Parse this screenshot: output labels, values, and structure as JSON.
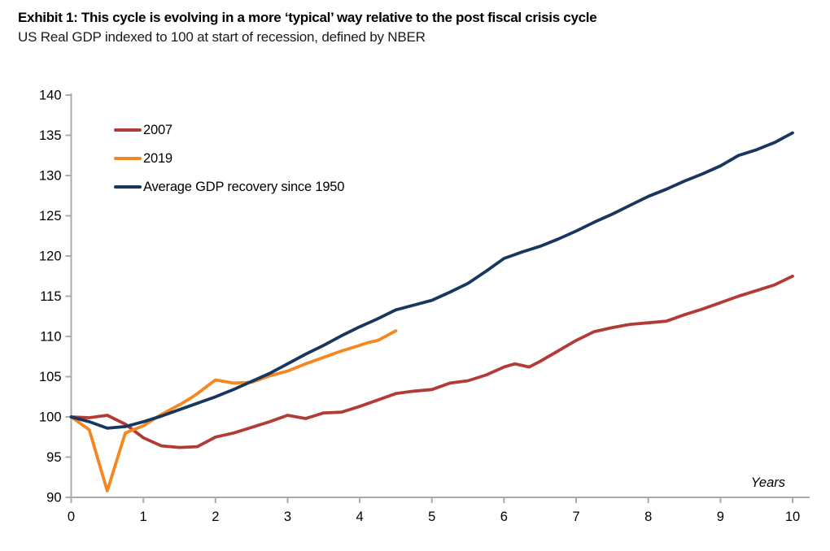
{
  "header": {
    "exhibit_title": "Exhibit 1: This cycle is evolving in a more ‘typical’ way relative to the post fiscal crisis cycle",
    "subtitle": "US Real GDP indexed to 100 at start of recession, defined by NBER"
  },
  "chart_data": {
    "type": "line",
    "title": "Exhibit 1: This cycle is evolving in a more ‘typical’ way relative to the post fiscal crisis cycle",
    "subtitle": "US Real GDP indexed to 100 at start of recession, defined by NBER",
    "xlabel": "Years",
    "ylabel": "US Real GDP indexed to 100 at start of recession",
    "xlim": [
      0,
      10
    ],
    "ylim": [
      90,
      140
    ],
    "xticks": [
      0,
      1,
      2,
      3,
      4,
      5,
      6,
      7,
      8,
      9,
      10
    ],
    "yticks": [
      90,
      95,
      100,
      105,
      110,
      115,
      120,
      125,
      130,
      135,
      140
    ],
    "grid": false,
    "legend_position": "upper-left-inside",
    "axis_color": "#ababab",
    "tick_label_color": "#000000",
    "series": [
      {
        "name": "2007",
        "color": "#b23b38",
        "points": [
          [
            0,
            100
          ],
          [
            0.25,
            99.9
          ],
          [
            0.5,
            100.2
          ],
          [
            0.75,
            99.1
          ],
          [
            1,
            97.4
          ],
          [
            1.25,
            96.4
          ],
          [
            1.5,
            96.2
          ],
          [
            1.75,
            96.3
          ],
          [
            2,
            97.5
          ],
          [
            2.25,
            98.0
          ],
          [
            2.5,
            98.7
          ],
          [
            2.75,
            99.4
          ],
          [
            3,
            100.2
          ],
          [
            3.25,
            99.8
          ],
          [
            3.5,
            100.5
          ],
          [
            3.75,
            100.6
          ],
          [
            4,
            101.3
          ],
          [
            4.25,
            102.1
          ],
          [
            4.5,
            102.9
          ],
          [
            4.75,
            103.2
          ],
          [
            5,
            103.4
          ],
          [
            5.25,
            104.2
          ],
          [
            5.5,
            104.5
          ],
          [
            5.75,
            105.2
          ],
          [
            6,
            106.2
          ],
          [
            6.15,
            106.6
          ],
          [
            6.35,
            106.2
          ],
          [
            6.5,
            106.9
          ],
          [
            6.75,
            108.2
          ],
          [
            7,
            109.5
          ],
          [
            7.25,
            110.6
          ],
          [
            7.5,
            111.1
          ],
          [
            7.75,
            111.5
          ],
          [
            8,
            111.7
          ],
          [
            8.25,
            111.9
          ],
          [
            8.5,
            112.7
          ],
          [
            8.75,
            113.4
          ],
          [
            9,
            114.2
          ],
          [
            9.25,
            115.0
          ],
          [
            9.5,
            115.7
          ],
          [
            9.75,
            116.4
          ],
          [
            10,
            117.5
          ]
        ]
      },
      {
        "name": "2019",
        "color": "#f6861f",
        "points": [
          [
            0,
            100
          ],
          [
            0.25,
            98.4
          ],
          [
            0.5,
            90.8
          ],
          [
            0.75,
            98.0
          ],
          [
            1,
            98.9
          ],
          [
            1.25,
            100.3
          ],
          [
            1.5,
            101.5
          ],
          [
            1.65,
            102.3
          ],
          [
            1.75,
            102.9
          ],
          [
            2,
            104.6
          ],
          [
            2.25,
            104.2
          ],
          [
            2.5,
            104.3
          ],
          [
            2.75,
            105.1
          ],
          [
            3,
            105.7
          ],
          [
            3.25,
            106.6
          ],
          [
            3.5,
            107.4
          ],
          [
            3.75,
            108.2
          ],
          [
            4,
            108.9
          ],
          [
            4.1,
            109.2
          ],
          [
            4.25,
            109.5
          ],
          [
            4.5,
            110.7
          ]
        ]
      },
      {
        "name": "Average GDP recovery since 1950",
        "color": "#17375e",
        "points": [
          [
            0,
            100
          ],
          [
            0.25,
            99.4
          ],
          [
            0.5,
            98.6
          ],
          [
            0.75,
            98.8
          ],
          [
            1,
            99.4
          ],
          [
            1.25,
            100.1
          ],
          [
            1.5,
            100.9
          ],
          [
            1.75,
            101.7
          ],
          [
            2,
            102.5
          ],
          [
            2.25,
            103.4
          ],
          [
            2.5,
            104.4
          ],
          [
            2.75,
            105.4
          ],
          [
            3,
            106.6
          ],
          [
            3.25,
            107.8
          ],
          [
            3.5,
            108.9
          ],
          [
            3.75,
            110.1
          ],
          [
            4,
            111.2
          ],
          [
            4.25,
            112.2
          ],
          [
            4.5,
            113.3
          ],
          [
            4.75,
            113.9
          ],
          [
            5,
            114.5
          ],
          [
            5.25,
            115.5
          ],
          [
            5.5,
            116.6
          ],
          [
            5.75,
            118.1
          ],
          [
            6,
            119.7
          ],
          [
            6.25,
            120.5
          ],
          [
            6.5,
            121.2
          ],
          [
            6.75,
            122.1
          ],
          [
            7,
            123.1
          ],
          [
            7.25,
            124.2
          ],
          [
            7.5,
            125.2
          ],
          [
            7.75,
            126.3
          ],
          [
            8,
            127.4
          ],
          [
            8.25,
            128.3
          ],
          [
            8.5,
            129.3
          ],
          [
            8.75,
            130.2
          ],
          [
            9,
            131.2
          ],
          [
            9.25,
            132.5
          ],
          [
            9.5,
            133.2
          ],
          [
            9.75,
            134.1
          ],
          [
            10,
            135.3
          ]
        ]
      }
    ]
  },
  "years_axis_label": "Years"
}
